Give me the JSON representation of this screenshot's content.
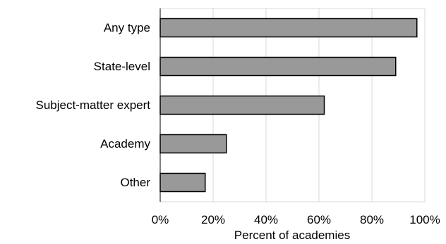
{
  "chart_data": {
    "type": "bar",
    "orientation": "horizontal",
    "categories": [
      "Any type",
      "State-level",
      "Subject-matter expert",
      "Academy",
      "Other"
    ],
    "values": [
      97,
      89,
      62,
      25,
      17
    ],
    "unit": "percent",
    "title": "",
    "xlabel": "Percent of academies",
    "ylabel": "",
    "xlim": [
      0,
      100
    ],
    "x_ticks": [
      "0%",
      "20%",
      "40%",
      "60%",
      "80%",
      "100%"
    ],
    "grid": "vertical",
    "legend": "none",
    "colors": {
      "bar_fill": "#999999",
      "bar_stroke": "#000000",
      "gridline": "#d9d9d9",
      "axis": "#000000"
    }
  }
}
